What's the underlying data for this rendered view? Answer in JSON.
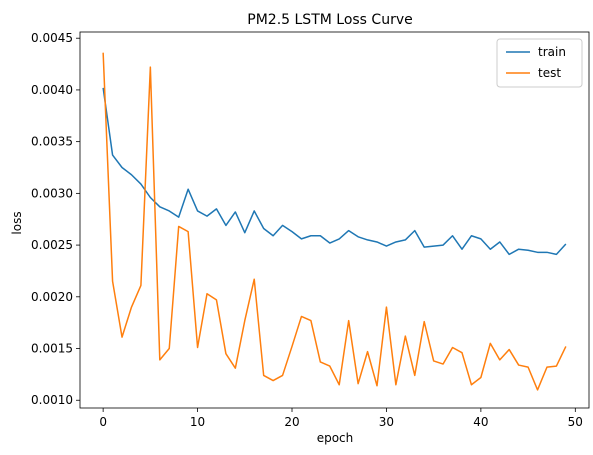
{
  "chart_data": {
    "type": "line",
    "title": "PM2.5 LSTM Loss Curve",
    "xlabel": "epoch",
    "ylabel": "loss",
    "xlim": [
      -2.45,
      51.45
    ],
    "ylim": [
      0.000925,
      0.00456
    ],
    "xticks": [
      0,
      10,
      20,
      30,
      40,
      50
    ],
    "yticks": [
      0.001,
      0.0015,
      0.002,
      0.0025,
      0.003,
      0.0035,
      0.004,
      0.0045
    ],
    "ytick_labels": [
      "0.0010",
      "0.0015",
      "0.0020",
      "0.0025",
      "0.0030",
      "0.0035",
      "0.0040",
      "0.0045"
    ],
    "grid": false,
    "legend_position": "top-right",
    "x": [
      0,
      1,
      2,
      3,
      4,
      5,
      6,
      7,
      8,
      9,
      10,
      11,
      12,
      13,
      14,
      15,
      16,
      17,
      18,
      19,
      20,
      21,
      22,
      23,
      24,
      25,
      26,
      27,
      28,
      29,
      30,
      31,
      32,
      33,
      34,
      35,
      36,
      37,
      38,
      39,
      40,
      41,
      42,
      43,
      44,
      45,
      46,
      47,
      48,
      49
    ],
    "series": [
      {
        "name": "train",
        "color": "#1f77b4",
        "values": [
          0.00402,
          0.00337,
          0.00325,
          0.00318,
          0.00309,
          0.00296,
          0.00287,
          0.00283,
          0.00277,
          0.00304,
          0.00283,
          0.00278,
          0.00285,
          0.00269,
          0.00282,
          0.00262,
          0.00283,
          0.00266,
          0.00259,
          0.00269,
          0.00263,
          0.00256,
          0.00259,
          0.00259,
          0.00252,
          0.00256,
          0.00264,
          0.00258,
          0.00255,
          0.00253,
          0.00249,
          0.00253,
          0.00255,
          0.00264,
          0.00248,
          0.00249,
          0.0025,
          0.00259,
          0.00246,
          0.00259,
          0.00256,
          0.00246,
          0.00253,
          0.00241,
          0.00246,
          0.00245,
          0.00243,
          0.00243,
          0.00241,
          0.00251
        ]
      },
      {
        "name": "test",
        "color": "#ff7f0e",
        "values": [
          0.00436,
          0.00215,
          0.00161,
          0.0019,
          0.00211,
          0.00422,
          0.00139,
          0.0015,
          0.00268,
          0.00263,
          0.00151,
          0.00203,
          0.00197,
          0.00145,
          0.00131,
          0.00177,
          0.00217,
          0.00124,
          0.00119,
          0.00124,
          0.00152,
          0.00181,
          0.00177,
          0.00137,
          0.00133,
          0.00115,
          0.00177,
          0.00116,
          0.00147,
          0.00114,
          0.0019,
          0.00115,
          0.00162,
          0.00124,
          0.00176,
          0.00138,
          0.00135,
          0.00151,
          0.00146,
          0.00115,
          0.00122,
          0.00155,
          0.00139,
          0.00149,
          0.00134,
          0.00132,
          0.0011,
          0.00132,
          0.00133,
          0.00152
        ]
      }
    ]
  }
}
